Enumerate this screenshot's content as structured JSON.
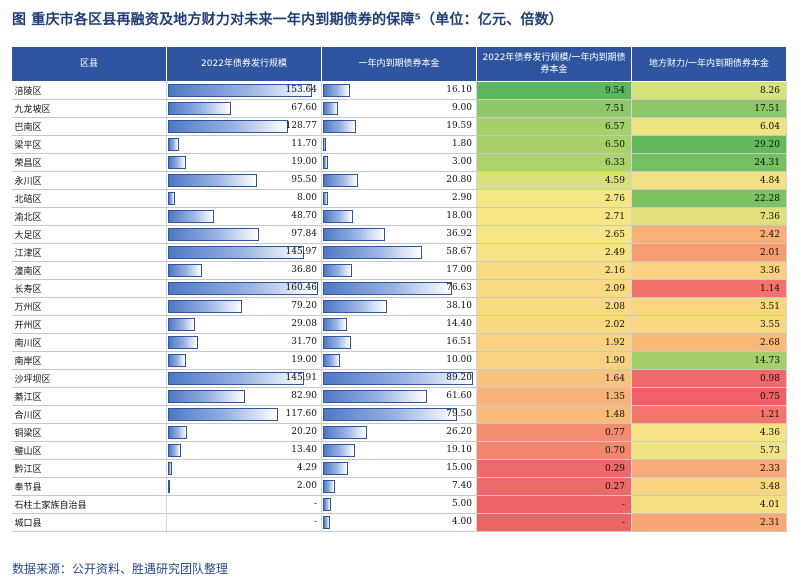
{
  "title": "图  重庆市各区县再融资及地方财力对未来一年内到期债券的保障⁵（单位：亿元、倍数）",
  "columns": [
    "区县",
    "2022年债券发行规模",
    "一年内到期债券本金",
    "2022年债券发行规模/一年内到期债券本金",
    "地方财力/一年内到期债券本金"
  ],
  "bar_max": {
    "issuance": 160.46,
    "maturity": 89.2
  },
  "rows": [
    {
      "name": "涪陵区",
      "issuance": "153.64",
      "maturity": "16.10",
      "ratio1": "9.54",
      "ratio2": "8.26",
      "c1": "#5cb85c",
      "c2": "#d6e27a"
    },
    {
      "name": "九龙坡区",
      "issuance": "67.60",
      "maturity": "9.00",
      "ratio1": "7.51",
      "ratio2": "17.51",
      "c1": "#8dc767",
      "c2": "#8dc767"
    },
    {
      "name": "巴南区",
      "issuance": "128.77",
      "maturity": "19.59",
      "ratio1": "6.57",
      "ratio2": "6.04",
      "c1": "#a5d06b",
      "c2": "#ece381"
    },
    {
      "name": "梁平区",
      "issuance": "11.70",
      "maturity": "1.80",
      "ratio1": "6.50",
      "ratio2": "29.20",
      "c1": "#a8d16b",
      "c2": "#63ba5d"
    },
    {
      "name": "荣昌区",
      "issuance": "19.00",
      "maturity": "3.00",
      "ratio1": "6.33",
      "ratio2": "24.31",
      "c1": "#acd36c",
      "c2": "#74c062"
    },
    {
      "name": "永川区",
      "issuance": "95.50",
      "maturity": "20.80",
      "ratio1": "4.59",
      "ratio2": "4.84",
      "c1": "#d8e079",
      "c2": "#f3e284"
    },
    {
      "name": "北碚区",
      "issuance": "8.00",
      "maturity": "2.90",
      "ratio1": "2.76",
      "ratio2": "22.28",
      "c1": "#f4e685",
      "c2": "#7cc263"
    },
    {
      "name": "渝北区",
      "issuance": "48.70",
      "maturity": "18.00",
      "ratio1": "2.71",
      "ratio2": "7.36",
      "c1": "#f4e685",
      "c2": "#dfe07c"
    },
    {
      "name": "大足区",
      "issuance": "97.84",
      "maturity": "36.92",
      "ratio1": "2.65",
      "ratio2": "2.42",
      "c1": "#f5e585",
      "c2": "#f8b077"
    },
    {
      "name": "江津区",
      "issuance": "145.97",
      "maturity": "58.67",
      "ratio1": "2.49",
      "ratio2": "2.01",
      "c1": "#f7e285",
      "c2": "#f79c71"
    },
    {
      "name": "潼南区",
      "issuance": "36.80",
      "maturity": "17.00",
      "ratio1": "2.16",
      "ratio2": "3.36",
      "c1": "#f8dc83",
      "c2": "#fad180"
    },
    {
      "name": "长寿区",
      "issuance": "160.46",
      "maturity": "76.63",
      "ratio1": "2.09",
      "ratio2": "1.14",
      "c1": "#f9da83",
      "c2": "#f2716b"
    },
    {
      "name": "万州区",
      "issuance": "79.20",
      "maturity": "38.10",
      "ratio1": "2.08",
      "ratio2": "3.51",
      "c1": "#f9da83",
      "c2": "#fad681"
    },
    {
      "name": "开州区",
      "issuance": "29.08",
      "maturity": "14.40",
      "ratio1": "2.02",
      "ratio2": "3.55",
      "c1": "#f9d882",
      "c2": "#fad781"
    },
    {
      "name": "南川区",
      "issuance": "31.70",
      "maturity": "16.51",
      "ratio1": "1.92",
      "ratio2": "2.68",
      "c1": "#f9d382",
      "c2": "#f9ba79"
    },
    {
      "name": "南岸区",
      "issuance": "19.00",
      "maturity": "10.00",
      "ratio1": "1.90",
      "ratio2": "14.73",
      "c1": "#f9d281",
      "c2": "#a3cf6a"
    },
    {
      "name": "沙坪坝区",
      "issuance": "145.91",
      "maturity": "89.20",
      "ratio1": "1.64",
      "ratio2": "0.98",
      "c1": "#f8c47d",
      "c2": "#f06a6a"
    },
    {
      "name": "綦江区",
      "issuance": "82.90",
      "maturity": "61.60",
      "ratio1": "1.35",
      "ratio2": "0.75",
      "c1": "#f8b378",
      "c2": "#ef6069"
    },
    {
      "name": "合川区",
      "issuance": "117.60",
      "maturity": "79.50",
      "ratio1": "1.48",
      "ratio2": "1.21",
      "c1": "#f8bb7a",
      "c2": "#f3756c"
    },
    {
      "name": "铜梁区",
      "issuance": "20.20",
      "maturity": "26.20",
      "ratio1": "0.77",
      "ratio2": "4.36",
      "c1": "#f48d70",
      "c2": "#f5e285"
    },
    {
      "name": "璧山区",
      "issuance": "13.40",
      "maturity": "19.10",
      "ratio1": "0.70",
      "ratio2": "5.73",
      "c1": "#f3876e",
      "c2": "#efe383"
    },
    {
      "name": "黔江区",
      "issuance": "4.29",
      "maturity": "15.00",
      "ratio1": "0.29",
      "ratio2": "2.33",
      "c1": "#ee6a6a",
      "c2": "#f8ab76"
    },
    {
      "name": "奉节县",
      "issuance": "2.00",
      "maturity": "7.40",
      "ratio1": "0.27",
      "ratio2": "3.48",
      "c1": "#ee6969",
      "c2": "#fad581"
    },
    {
      "name": "石柱土家族自治县",
      "issuance": "-",
      "maturity": "5.00",
      "ratio1": "-",
      "ratio2": "4.01",
      "c1": "#ed6464",
      "c2": "#f6df84"
    },
    {
      "name": "城口县",
      "issuance": "-",
      "maturity": "4.00",
      "ratio1": "-",
      "ratio2": "2.31",
      "c1": "#ed6464",
      "c2": "#f8a875"
    }
  ],
  "source": "数据来源：公开资料、胜遇研究团队整理"
}
